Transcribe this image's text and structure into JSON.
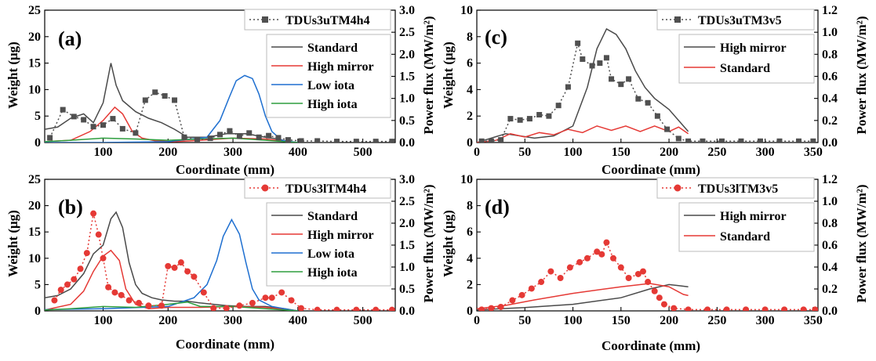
{
  "chart_data": [
    {
      "panel": "(a)",
      "type": "line",
      "xlabel": "Coordinate (mm)",
      "ylabel": "Weight (μg)",
      "y2label": "Power flux (MW/m²)",
      "xlim": [
        10,
        550
      ],
      "ylim": [
        0,
        25
      ],
      "y2lim": [
        0,
        3.0
      ],
      "xticks": [
        100,
        200,
        300,
        400,
        500
      ],
      "yticks": [
        0,
        5,
        10,
        15,
        20,
        25
      ],
      "y2ticks": [
        0.0,
        0.5,
        1.0,
        1.5,
        2.0,
        2.5,
        3.0
      ],
      "weight_legend_name": "TDUs3uTM4h4",
      "weight_color": "#505050",
      "weight_marker": "square",
      "weight_points": [
        [
          18,
          0.9
        ],
        [
          38,
          6.2
        ],
        [
          55,
          4.9
        ],
        [
          70,
          4.3
        ],
        [
          85,
          3.0
        ],
        [
          100,
          3.3
        ],
        [
          115,
          4.5
        ],
        [
          130,
          2.6
        ],
        [
          150,
          1.8
        ],
        [
          165,
          8.0
        ],
        [
          180,
          9.5
        ],
        [
          195,
          8.8
        ],
        [
          210,
          8.0
        ],
        [
          225,
          1.0
        ],
        [
          245,
          0.5
        ],
        [
          265,
          0.8
        ],
        [
          280,
          1.5
        ],
        [
          295,
          2.2
        ],
        [
          310,
          1.2
        ],
        [
          325,
          1.8
        ],
        [
          340,
          1.0
        ],
        [
          355,
          1.3
        ],
        [
          370,
          0.9
        ],
        [
          385,
          0.5
        ],
        [
          405,
          0.3
        ],
        [
          430,
          0.3
        ],
        [
          460,
          0.2
        ],
        [
          490,
          0.2
        ],
        [
          520,
          0.2
        ],
        [
          545,
          0.2
        ]
      ],
      "series": [
        {
          "name": "Standard",
          "color": "#4a4a4a",
          "x": [
            10,
            30,
            50,
            70,
            85,
            100,
            112,
            120,
            130,
            150,
            170,
            190,
            210,
            230,
            260,
            290,
            320,
            350,
            370,
            385,
            400
          ],
          "y": [
            0.3,
            0.35,
            0.55,
            0.65,
            0.45,
            0.9,
            1.8,
            1.3,
            0.95,
            0.7,
            0.55,
            0.45,
            0.3,
            0.12,
            0.12,
            0.2,
            0.2,
            0.12,
            0.08,
            0.02,
            0.0
          ]
        },
        {
          "name": "High mirror",
          "color": "#e53935",
          "x": [
            10,
            50,
            80,
            100,
            118,
            130,
            145,
            160,
            180,
            210,
            250,
            300,
            350,
            400
          ],
          "y": [
            0.02,
            0.05,
            0.25,
            0.5,
            0.8,
            0.65,
            0.25,
            0.1,
            0.04,
            0.02,
            0.05,
            0.1,
            0.08,
            0.0
          ]
        },
        {
          "name": "Low iota",
          "color": "#1e6fd0",
          "x": [
            10,
            100,
            200,
            260,
            280,
            295,
            305,
            318,
            330,
            340,
            350,
            360,
            375,
            400
          ],
          "y": [
            0.0,
            0.0,
            0.02,
            0.12,
            0.5,
            1.05,
            1.4,
            1.52,
            1.45,
            1.1,
            0.6,
            0.25,
            0.05,
            0.0
          ]
        },
        {
          "name": "High iota",
          "color": "#2e9e3e",
          "x": [
            10,
            50,
            100,
            150,
            200,
            250,
            300,
            350,
            400
          ],
          "y": [
            0.02,
            0.05,
            0.1,
            0.08,
            0.05,
            0.08,
            0.1,
            0.05,
            0.0
          ]
        }
      ]
    },
    {
      "panel": "(b)",
      "type": "line",
      "xlabel": "Coordinate (mm)",
      "ylabel": "Weight (μg)",
      "y2label": "Power flux (MW/m²)",
      "xlim": [
        10,
        550
      ],
      "ylim": [
        0,
        25
      ],
      "y2lim": [
        0,
        3.0
      ],
      "xticks": [
        100,
        200,
        300,
        400,
        500
      ],
      "yticks": [
        0,
        5,
        10,
        15,
        20,
        25
      ],
      "y2ticks": [
        0.0,
        0.5,
        1.0,
        1.5,
        2.0,
        2.5,
        3.0
      ],
      "weight_legend_name": "TDUs3lTM4h4",
      "weight_color": "#e53935",
      "weight_marker": "circle",
      "weight_points": [
        [
          25,
          2.0
        ],
        [
          35,
          4.0
        ],
        [
          45,
          5.0
        ],
        [
          55,
          6.0
        ],
        [
          65,
          8.0
        ],
        [
          75,
          11.0
        ],
        [
          85,
          18.5
        ],
        [
          93,
          14.5
        ],
        [
          100,
          10.0
        ],
        [
          108,
          4.5
        ],
        [
          118,
          3.5
        ],
        [
          128,
          3.0
        ],
        [
          140,
          2.0
        ],
        [
          155,
          1.5
        ],
        [
          170,
          1.0
        ],
        [
          190,
          1.0
        ],
        [
          200,
          8.5
        ],
        [
          210,
          8.2
        ],
        [
          220,
          9.2
        ],
        [
          230,
          7.5
        ],
        [
          240,
          6.5
        ],
        [
          255,
          3.5
        ],
        [
          270,
          0.5
        ],
        [
          290,
          0.5
        ],
        [
          310,
          1.0
        ],
        [
          330,
          1.5
        ],
        [
          350,
          2.5
        ],
        [
          360,
          2.5
        ],
        [
          375,
          3.5
        ],
        [
          390,
          2.0
        ],
        [
          405,
          0.5
        ],
        [
          430,
          0.2
        ],
        [
          460,
          0.2
        ],
        [
          490,
          0.2
        ],
        [
          520,
          0.2
        ],
        [
          545,
          0.2
        ]
      ],
      "series": [
        {
          "name": "Standard",
          "color": "#4a4a4a",
          "x": [
            10,
            30,
            50,
            70,
            85,
            100,
            112,
            120,
            130,
            140,
            150,
            160,
            175,
            190,
            210,
            230,
            250,
            270,
            290,
            320,
            350,
            380,
            400
          ],
          "y": [
            0.3,
            0.35,
            0.5,
            0.85,
            1.3,
            1.5,
            2.1,
            2.25,
            1.9,
            1.1,
            0.6,
            0.4,
            0.3,
            0.25,
            0.22,
            0.22,
            0.18,
            0.15,
            0.12,
            0.1,
            0.1,
            0.05,
            0.0
          ]
        },
        {
          "name": "High mirror",
          "color": "#e53935",
          "x": [
            10,
            50,
            70,
            85,
            100,
            112,
            125,
            135,
            150,
            170,
            200,
            250,
            300,
            350,
            400
          ],
          "y": [
            0.02,
            0.15,
            0.45,
            0.9,
            1.25,
            1.38,
            1.15,
            0.5,
            0.15,
            0.05,
            0.08,
            0.08,
            0.1,
            0.08,
            0.0
          ]
        },
        {
          "name": "Low iota",
          "color": "#1e6fd0",
          "x": [
            10,
            100,
            200,
            240,
            260,
            275,
            285,
            298,
            310,
            320,
            330,
            340,
            360,
            390,
            400
          ],
          "y": [
            0.03,
            0.05,
            0.1,
            0.3,
            0.6,
            1.15,
            1.7,
            2.08,
            1.75,
            1.1,
            0.5,
            0.25,
            0.1,
            0.02,
            0.0
          ]
        },
        {
          "name": "High iota",
          "color": "#2e9e3e",
          "x": [
            10,
            50,
            100,
            150,
            200,
            230,
            250,
            300,
            350,
            400
          ],
          "y": [
            0.02,
            0.05,
            0.1,
            0.08,
            0.15,
            0.2,
            0.1,
            0.1,
            0.05,
            0.0
          ]
        }
      ]
    },
    {
      "panel": "(c)",
      "type": "line",
      "xlabel": "Coordinate (mm)",
      "ylabel": "Weight (μg)",
      "y2label": "Power flux (MW/m²)",
      "xlim": [
        0,
        355
      ],
      "ylim": [
        0,
        10
      ],
      "y2lim": [
        0,
        1.2
      ],
      "xticks": [
        0,
        50,
        100,
        150,
        200,
        250,
        300,
        350
      ],
      "yticks": [
        0,
        2,
        4,
        6,
        8,
        10
      ],
      "y2ticks": [
        0.0,
        0.2,
        0.4,
        0.6,
        0.8,
        1.0,
        1.2
      ],
      "weight_legend_name": "TDUs3uTM3v5",
      "weight_color": "#505050",
      "weight_marker": "square",
      "weight_points": [
        [
          5,
          0.1
        ],
        [
          15,
          0.1
        ],
        [
          25,
          0.2
        ],
        [
          35,
          1.8
        ],
        [
          45,
          1.7
        ],
        [
          55,
          1.8
        ],
        [
          65,
          2.1
        ],
        [
          75,
          2.0
        ],
        [
          85,
          2.8
        ],
        [
          95,
          4.2
        ],
        [
          105,
          7.5
        ],
        [
          110,
          6.3
        ],
        [
          120,
          5.8
        ],
        [
          128,
          6.0
        ],
        [
          135,
          6.4
        ],
        [
          140,
          4.8
        ],
        [
          150,
          4.4
        ],
        [
          158,
          4.8
        ],
        [
          168,
          3.3
        ],
        [
          178,
          3.0
        ],
        [
          188,
          2.0
        ],
        [
          198,
          1.0
        ],
        [
          210,
          0.3
        ],
        [
          220,
          0.1
        ],
        [
          235,
          0.1
        ],
        [
          255,
          0.1
        ],
        [
          275,
          0.1
        ],
        [
          295,
          0.1
        ],
        [
          315,
          0.1
        ],
        [
          335,
          0.1
        ],
        [
          350,
          0.1
        ]
      ],
      "series": [
        {
          "name": "High mirror",
          "color": "#4a4a4a",
          "x": [
            0,
            30,
            60,
            80,
            100,
            115,
            125,
            135,
            145,
            155,
            165,
            175,
            185,
            200,
            215,
            220
          ],
          "y": [
            0.0,
            0.08,
            0.04,
            0.06,
            0.15,
            0.5,
            0.85,
            1.03,
            0.98,
            0.85,
            0.65,
            0.5,
            0.4,
            0.3,
            0.15,
            0.1
          ]
        },
        {
          "name": "Standard",
          "color": "#e53935",
          "x": [
            0,
            20,
            35,
            50,
            65,
            80,
            95,
            110,
            125,
            140,
            155,
            170,
            185,
            200,
            210,
            220
          ],
          "y": [
            0.0,
            0.02,
            0.08,
            0.05,
            0.09,
            0.07,
            0.12,
            0.09,
            0.15,
            0.11,
            0.15,
            0.1,
            0.15,
            0.1,
            0.14,
            0.08
          ]
        }
      ]
    },
    {
      "panel": "(d)",
      "type": "line",
      "xlabel": "Coordinate (mm)",
      "ylabel": "Weight (μg)",
      "y2label": "Power flux (MW/m²)",
      "xlim": [
        0,
        355
      ],
      "ylim": [
        0,
        10
      ],
      "y2lim": [
        0,
        1.2
      ],
      "xticks": [
        0,
        50,
        100,
        150,
        200,
        250,
        300,
        350
      ],
      "yticks": [
        0,
        2,
        4,
        6,
        8,
        10
      ],
      "y2ticks": [
        0.0,
        0.2,
        0.4,
        0.6,
        0.8,
        1.0,
        1.2
      ],
      "weight_legend_name": "TDUs3lTM3v5",
      "weight_color": "#e53935",
      "weight_marker": "circle",
      "weight_points": [
        [
          5,
          0.1
        ],
        [
          15,
          0.2
        ],
        [
          25,
          0.3
        ],
        [
          37,
          0.8
        ],
        [
          47,
          1.2
        ],
        [
          57,
          1.7
        ],
        [
          67,
          2.2
        ],
        [
          77,
          3.0
        ],
        [
          87,
          2.5
        ],
        [
          97,
          3.3
        ],
        [
          107,
          3.7
        ],
        [
          115,
          4.0
        ],
        [
          125,
          4.5
        ],
        [
          130,
          4.3
        ],
        [
          135,
          5.2
        ],
        [
          142,
          4.0
        ],
        [
          150,
          3.3
        ],
        [
          158,
          2.5
        ],
        [
          168,
          2.8
        ],
        [
          173,
          3.0
        ],
        [
          178,
          2.2
        ],
        [
          185,
          1.5
        ],
        [
          190,
          1.0
        ],
        [
          195,
          0.5
        ],
        [
          205,
          0.2
        ],
        [
          220,
          0.1
        ],
        [
          240,
          0.1
        ],
        [
          260,
          0.1
        ],
        [
          280,
          0.1
        ],
        [
          300,
          0.1
        ],
        [
          320,
          0.1
        ],
        [
          340,
          0.1
        ],
        [
          352,
          0.1
        ]
      ],
      "series": [
        {
          "name": "High mirror",
          "color": "#4a4a4a",
          "x": [
            0,
            50,
            100,
            150,
            180,
            200,
            210,
            220
          ],
          "y": [
            0.01,
            0.03,
            0.06,
            0.12,
            0.2,
            0.24,
            0.23,
            0.22
          ]
        },
        {
          "name": "Standard",
          "color": "#e53935",
          "x": [
            0,
            30,
            60,
            100,
            150,
            180,
            200,
            215,
            220
          ],
          "y": [
            0.02,
            0.05,
            0.1,
            0.16,
            0.22,
            0.25,
            0.22,
            0.15,
            0.14
          ]
        }
      ]
    }
  ],
  "panels": [
    {
      "letter": "(a)",
      "xlabel": "Coordinate (mm)",
      "ylabel": "Weight (μg)",
      "y2label": "Power flux (MW/m²)"
    },
    {
      "letter": "(b)",
      "xlabel": "Coordinate (mm)",
      "ylabel": "Weight (μg)",
      "y2label": "Power flux (MW/m²)"
    },
    {
      "letter": "(c)",
      "xlabel": "Coordinate (mm)",
      "ylabel": "Weight (μg)",
      "y2label": "Power flux (MW/m²)"
    },
    {
      "letter": "(d)",
      "xlabel": "Coordinate (mm)",
      "ylabel": "Weight (μg)",
      "y2label": "Power flux (MW/m²)"
    }
  ]
}
